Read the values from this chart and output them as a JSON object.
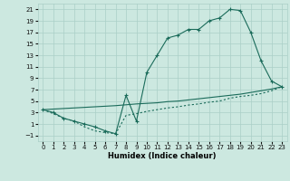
{
  "xlabel": "Humidex (Indice chaleur)",
  "bg_color": "#cce8e0",
  "grid_color": "#aacfc7",
  "line_color": "#1a6b5a",
  "xlim": [
    -0.5,
    23.5
  ],
  "ylim": [
    -2,
    22
  ],
  "xticks": [
    0,
    1,
    2,
    3,
    4,
    5,
    6,
    7,
    8,
    9,
    10,
    11,
    12,
    13,
    14,
    15,
    16,
    17,
    18,
    19,
    20,
    21,
    22,
    23
  ],
  "yticks": [
    -1,
    1,
    3,
    5,
    7,
    9,
    11,
    13,
    15,
    17,
    19,
    21
  ],
  "line1_x": [
    0,
    1,
    2,
    3,
    4,
    5,
    6,
    7,
    8,
    9,
    10,
    11,
    12,
    13,
    14,
    15,
    16,
    17,
    18,
    19,
    20,
    21,
    22,
    23
  ],
  "line1_y": [
    3.5,
    3.0,
    2.0,
    1.5,
    1.0,
    0.5,
    -0.2,
    -0.7,
    6.0,
    1.5,
    10.0,
    13.0,
    16.0,
    16.5,
    17.5,
    17.5,
    19.0,
    19.5,
    21.0,
    20.8,
    17.0,
    12.0,
    8.5,
    7.5
  ],
  "line2_x": [
    0,
    1,
    2,
    3,
    4,
    5,
    6,
    7,
    8,
    9,
    10,
    11,
    12,
    13,
    14,
    15,
    16,
    17,
    18,
    19,
    20,
    21,
    22,
    23
  ],
  "line2_y": [
    3.5,
    3.6,
    3.7,
    3.8,
    3.9,
    4.0,
    4.1,
    4.2,
    4.35,
    4.5,
    4.6,
    4.7,
    4.9,
    5.0,
    5.2,
    5.4,
    5.6,
    5.8,
    6.0,
    6.2,
    6.5,
    6.8,
    7.1,
    7.5
  ],
  "line3_x": [
    0,
    1,
    2,
    3,
    4,
    5,
    6,
    7,
    8,
    9,
    10,
    11,
    12,
    13,
    14,
    15,
    16,
    17,
    18,
    19,
    20,
    21,
    22,
    23
  ],
  "line3_y": [
    3.5,
    2.8,
    2.0,
    1.5,
    0.5,
    -0.2,
    -0.5,
    -0.7,
    2.5,
    2.8,
    3.2,
    3.5,
    3.8,
    4.0,
    4.3,
    4.5,
    4.8,
    5.0,
    5.5,
    5.8,
    6.0,
    6.3,
    6.8,
    7.5
  ]
}
